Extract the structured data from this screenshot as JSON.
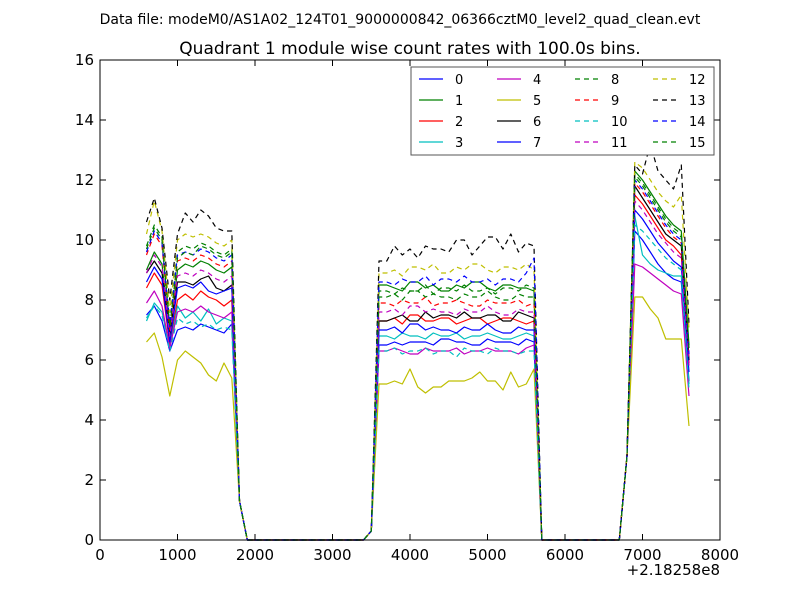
{
  "header_text": "Data file: modeM0/AS1A02_124T01_9000000842_06366cztM0_level2_quad_clean.evt",
  "chart_data": {
    "type": "line",
    "title": "Quadrant 1 module wise count rates with 100.0s bins.",
    "xlabel": "",
    "ylabel": "",
    "xlim": [
      0,
      8000
    ],
    "ylim": [
      0,
      16
    ],
    "x_ticks": [
      0,
      1000,
      2000,
      3000,
      4000,
      5000,
      6000,
      7000,
      8000
    ],
    "y_ticks": [
      0,
      2,
      4,
      6,
      8,
      10,
      12,
      14,
      16
    ],
    "x_offset_label": "+2.18258e8",
    "grid": false,
    "legend": {
      "placement": "top-right",
      "columns": 4
    },
    "x_times": [
      600,
      700,
      800,
      900,
      1000,
      1100,
      1200,
      1300,
      1400,
      1500,
      1600,
      1700,
      1800,
      1900,
      2000,
      2100,
      2200,
      2300,
      2400,
      2500,
      2600,
      2700,
      2800,
      2900,
      3000,
      3100,
      3200,
      3300,
      3400,
      3500,
      3600,
      3700,
      3800,
      3900,
      4000,
      4100,
      4200,
      4300,
      4400,
      4500,
      4600,
      4700,
      4800,
      4900,
      5000,
      5100,
      5200,
      5300,
      5400,
      5500,
      5600,
      5700,
      5800,
      5900,
      6000,
      6100,
      6200,
      6300,
      6400,
      6500,
      6600,
      6700,
      6800,
      6900,
      7000,
      7100,
      7200,
      7300,
      7400,
      7500,
      7600
    ],
    "series": [
      {
        "name": "0",
        "color": "#0000ff",
        "dash": "solid",
        "base": [
          7.5,
          7.8,
          7.3,
          6.3,
          7.0,
          7.1,
          7.0,
          7.2,
          7.1,
          7.0,
          6.9,
          7.2
        ],
        "mid": [
          6.5,
          6.6,
          6.5,
          6.6,
          6.6,
          6.5,
          6.7,
          6.6,
          6.6,
          6.5,
          6.7,
          6.6,
          6.6,
          6.5,
          6.7,
          6.6
        ],
        "late": [
          10.3,
          10.0,
          9.6,
          9.2,
          8.9,
          8.7,
          8.6,
          8.4
        ],
        "end": 5.3
      },
      {
        "name": "1",
        "color": "#008000",
        "dash": "solid",
        "base": [
          9.0,
          9.6,
          9.2,
          6.8,
          9.0,
          9.2,
          9.1,
          9.3,
          9.2,
          9.0,
          8.9,
          9.1
        ],
        "mid": [
          8.5,
          8.4,
          8.3,
          8.6,
          8.4,
          8.5,
          8.3,
          8.5,
          8.4,
          8.6,
          8.4,
          8.3,
          8.5,
          8.4,
          8.4,
          8.3
        ],
        "late": [
          12.3,
          12.0,
          11.6,
          11.2,
          10.8,
          10.5,
          10.3,
          10.1
        ],
        "end": 6.5
      },
      {
        "name": "2",
        "color": "#ff0000",
        "dash": "solid",
        "base": [
          8.4,
          8.9,
          8.5,
          6.5,
          8.0,
          8.2,
          8.0,
          8.3,
          8.1,
          8.0,
          7.8,
          8.0
        ],
        "mid": [
          7.3,
          7.4,
          7.2,
          7.5,
          7.3,
          7.3,
          7.4,
          7.2,
          7.3,
          7.4,
          7.2,
          7.3,
          7.4,
          7.3,
          7.2,
          7.3
        ],
        "late": [
          11.5,
          11.2,
          10.8,
          10.4,
          10.0,
          9.8,
          9.5,
          9.3
        ],
        "end": 5.9
      },
      {
        "name": "3",
        "color": "#00bfbf",
        "dash": "solid",
        "base": [
          7.3,
          7.9,
          7.6,
          6.4,
          7.8,
          7.4,
          7.6,
          7.3,
          7.7,
          7.2,
          7.4,
          7.3
        ],
        "mid": [
          6.8,
          6.7,
          6.9,
          6.8,
          6.7,
          6.9,
          6.8,
          6.9,
          6.7,
          6.8,
          6.9,
          6.8,
          6.7,
          6.8,
          6.9,
          6.8
        ],
        "late": [
          10.8,
          9.5,
          9.2,
          9.0,
          8.9,
          8.8,
          8.8,
          8.7
        ],
        "end": 5.2
      },
      {
        "name": "4",
        "color": "#bf00bf",
        "dash": "solid",
        "base": [
          7.9,
          8.3,
          7.8,
          6.4,
          7.6,
          7.7,
          7.6,
          7.8,
          7.6,
          7.5,
          7.4,
          7.6
        ],
        "mid": [
          6.3,
          6.4,
          6.3,
          6.2,
          6.4,
          6.3,
          6.3,
          6.4,
          6.2,
          6.3,
          6.4,
          6.3,
          6.3,
          6.2,
          6.4,
          6.5
        ],
        "late": [
          9.2,
          9.1,
          8.9,
          8.7,
          8.5,
          8.3,
          8.2,
          8.0
        ],
        "end": 4.8
      },
      {
        "name": "5",
        "color": "#bfbf00",
        "dash": "solid",
        "base": [
          6.6,
          6.9,
          6.1,
          4.8,
          6.0,
          6.3,
          6.1,
          5.9,
          5.5,
          5.3,
          5.9,
          5.4
        ],
        "mid": [
          5.2,
          5.3,
          5.2,
          5.7,
          5.1,
          4.9,
          5.1,
          5.3,
          5.3,
          5.3,
          5.4,
          5.6,
          5.3,
          5.0,
          5.6,
          5.1,
          5.2,
          5.7
        ],
        "late": [
          8.1,
          8.1,
          7.7,
          7.4,
          6.7,
          6.7,
          6.7,
          6.6
        ],
        "end": 3.8
      },
      {
        "name": "6",
        "color": "#000000",
        "dash": "solid",
        "base": [
          8.9,
          9.3,
          8.9,
          6.9,
          8.6,
          8.6,
          8.5,
          8.7,
          8.8,
          8.4,
          8.3,
          8.5
        ],
        "mid": [
          7.3,
          7.4,
          7.5,
          7.3,
          7.6,
          7.4,
          7.5,
          7.4,
          7.6,
          7.4,
          7.5,
          7.5,
          7.3,
          7.6,
          7.5,
          7.4
        ],
        "late": [
          11.8,
          11.4,
          11.0,
          10.6,
          10.2,
          10.0,
          9.8,
          9.6
        ],
        "end": 6.0
      },
      {
        "name": "7",
        "color": "#0000ff",
        "dash": "solid",
        "base": [
          8.6,
          9.1,
          8.7,
          6.6,
          8.4,
          8.5,
          8.4,
          8.6,
          8.3,
          8.2,
          8.3,
          8.4
        ],
        "mid": [
          7.0,
          7.1,
          6.9,
          7.2,
          7.0,
          7.1,
          7.0,
          6.9,
          7.1,
          7.0,
          7.2,
          7.0,
          6.9,
          7.1,
          7.0,
          7.0
        ],
        "late": [
          11.0,
          10.7,
          10.3,
          9.9,
          9.6,
          9.3,
          9.1,
          8.9
        ],
        "end": 5.6
      },
      {
        "name": "8",
        "color": "#008000",
        "dash": "dashed",
        "base": [
          9.8,
          10.5,
          10.1,
          7.2,
          9.6,
          9.8,
          9.7,
          9.9,
          9.8,
          9.6,
          9.5,
          9.7
        ],
        "mid": [
          8.3,
          8.2,
          8.4,
          8.3,
          8.5,
          8.2,
          8.4,
          8.3,
          8.5,
          8.3,
          8.4,
          8.2,
          8.4,
          8.3,
          8.5,
          8.4
        ],
        "late": [
          12.2,
          11.9,
          11.5,
          11.1,
          10.7,
          10.4,
          10.2,
          10.0
        ],
        "end": 6.3
      },
      {
        "name": "9",
        "color": "#ff0000",
        "dash": "dashed",
        "base": [
          9.5,
          10.2,
          9.8,
          7.0,
          9.3,
          9.4,
          9.3,
          9.5,
          9.4,
          9.2,
          9.1,
          9.3
        ],
        "mid": [
          7.9,
          7.8,
          8.0,
          7.9,
          8.1,
          7.8,
          7.9,
          8.0,
          7.9,
          7.8,
          8.0,
          7.9,
          7.9,
          8.0,
          7.8,
          7.9
        ],
        "late": [
          11.9,
          11.6,
          11.2,
          10.8,
          10.4,
          10.1,
          9.9,
          9.7
        ],
        "end": 6.1
      },
      {
        "name": "10",
        "color": "#00bfbf",
        "dash": "dashed",
        "base": [
          7.4,
          7.8,
          7.5,
          6.3,
          7.4,
          7.2,
          7.3,
          7.1,
          7.2,
          7.0,
          7.1,
          7.0
        ],
        "mid": [
          6.3,
          6.4,
          6.2,
          6.3,
          6.4,
          6.2,
          6.3,
          6.1,
          6.4,
          6.3,
          6.2,
          6.4,
          6.3,
          6.2,
          6.3,
          6.3
        ],
        "late": [
          10.5,
          10.3,
          10.0,
          9.7,
          9.4,
          9.2,
          9.0,
          8.8
        ],
        "end": 5.0
      },
      {
        "name": "11",
        "color": "#bf00bf",
        "dash": "dashed",
        "base": [
          8.9,
          9.5,
          9.1,
          6.8,
          8.8,
          8.9,
          8.8,
          9.0,
          8.9,
          8.7,
          8.6,
          8.8
        ],
        "mid": [
          7.6,
          7.7,
          7.5,
          7.8,
          7.6,
          7.7,
          7.6,
          7.5,
          7.7,
          7.6,
          7.8,
          7.6,
          7.5,
          7.7,
          7.6,
          7.6
        ],
        "late": [
          11.3,
          11.0,
          10.6,
          10.2,
          9.9,
          9.6,
          9.4,
          9.2
        ],
        "end": 5.8
      },
      {
        "name": "12",
        "color": "#bfbf00",
        "dash": "dashed",
        "base": [
          10.2,
          11.3,
          10.3,
          7.6,
          10.0,
          10.2,
          10.1,
          10.2,
          10.1,
          9.9,
          9.8,
          10.0
        ],
        "mid": [
          8.9,
          9.0,
          8.8,
          9.1,
          9.0,
          9.2,
          8.9,
          9.1,
          9.0,
          9.2,
          9.0,
          8.9,
          9.1,
          9.0,
          9.2,
          9.0
        ],
        "late": [
          12.6,
          12.4,
          12.0,
          11.6,
          11.3,
          11.1,
          11.5,
          11.4
        ],
        "end": 7.0
      },
      {
        "name": "13",
        "color": "#000000",
        "dash": "dashed",
        "base": [
          10.6,
          11.4,
          10.4,
          8.0,
          10.2,
          10.9,
          10.6,
          11.0,
          10.8,
          10.4,
          10.3,
          10.3
        ],
        "mid": [
          9.3,
          9.8,
          9.5,
          9.7,
          9.4,
          9.8,
          9.7,
          9.6,
          10.0,
          10.0,
          9.5,
          9.8,
          10.1,
          9.7,
          10.2,
          9.6,
          9.9,
          9.8
        ],
        "late": [
          12.5,
          12.2,
          13.2,
          12.3,
          12.0,
          11.7,
          12.5,
          12.3
        ],
        "end": 7.2
      },
      {
        "name": "14",
        "color": "#0000ff",
        "dash": "dashed",
        "base": [
          9.6,
          10.3,
          9.9,
          7.1,
          9.5,
          9.6,
          9.5,
          9.7,
          9.6,
          9.4,
          9.3,
          9.5
        ],
        "mid": [
          8.6,
          8.5,
          8.7,
          8.6,
          8.8,
          8.5,
          8.7,
          8.6,
          8.8,
          8.6,
          8.7,
          8.5,
          8.7,
          8.6,
          8.9,
          9.4
        ],
        "late": [
          12.0,
          11.7,
          11.3,
          10.9,
          10.5,
          10.2,
          10.0,
          9.8
        ],
        "end": 6.2
      },
      {
        "name": "15",
        "color": "#008000",
        "dash": "dashed",
        "base": [
          9.7,
          10.4,
          10.0,
          7.1,
          9.4,
          9.6,
          9.5,
          9.8,
          9.7,
          9.5,
          9.4,
          9.6
        ],
        "mid": [
          8.1,
          8.2,
          8.0,
          8.3,
          8.1,
          8.2,
          8.1,
          8.0,
          8.2,
          8.1,
          8.3,
          8.1,
          8.0,
          8.2,
          8.1,
          8.1
        ],
        "late": [
          12.1,
          11.8,
          11.4,
          11.0,
          10.6,
          10.3,
          10.1,
          9.9
        ],
        "end": 6.4
      }
    ]
  }
}
